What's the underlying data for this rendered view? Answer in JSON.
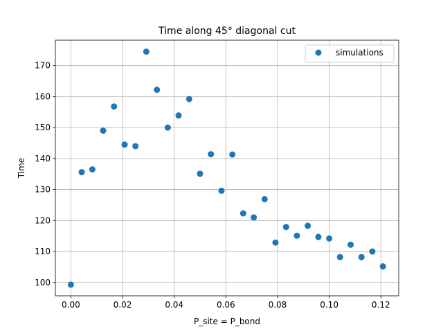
{
  "chart_data": {
    "type": "scatter",
    "title": "Time along 45° diagonal cut",
    "xlabel": "P_site = P_bond",
    "ylabel": "Time",
    "xlim": [
      -0.006,
      0.1269
    ],
    "ylim": [
      95.7,
      178.2
    ],
    "xticks": [
      0.0,
      0.02,
      0.04,
      0.06,
      0.08,
      0.1,
      0.12
    ],
    "xtick_labels": [
      "0.00",
      "0.02",
      "0.04",
      "0.06",
      "0.08",
      "0.10",
      "0.12"
    ],
    "yticks": [
      100,
      110,
      120,
      130,
      140,
      150,
      160,
      170
    ],
    "ytick_labels": [
      "100",
      "110",
      "120",
      "130",
      "140",
      "150",
      "160",
      "170"
    ],
    "grid": true,
    "legend_position": "top-right",
    "series": [
      {
        "name": "simulations",
        "color": "#1f77b4",
        "marker": "circle",
        "points": [
          {
            "x": 0.0,
            "y": 99.3
          },
          {
            "x": 0.0042,
            "y": 135.6
          },
          {
            "x": 0.0083,
            "y": 136.5
          },
          {
            "x": 0.0125,
            "y": 149.0
          },
          {
            "x": 0.0167,
            "y": 156.8
          },
          {
            "x": 0.0208,
            "y": 144.5
          },
          {
            "x": 0.025,
            "y": 144.0
          },
          {
            "x": 0.0292,
            "y": 174.5
          },
          {
            "x": 0.0333,
            "y": 162.2
          },
          {
            "x": 0.0375,
            "y": 150.0
          },
          {
            "x": 0.0417,
            "y": 153.9
          },
          {
            "x": 0.0458,
            "y": 159.2
          },
          {
            "x": 0.05,
            "y": 135.1
          },
          {
            "x": 0.0542,
            "y": 141.4
          },
          {
            "x": 0.0583,
            "y": 129.6
          },
          {
            "x": 0.0625,
            "y": 141.3
          },
          {
            "x": 0.0667,
            "y": 122.3
          },
          {
            "x": 0.0708,
            "y": 121.0
          },
          {
            "x": 0.075,
            "y": 126.9
          },
          {
            "x": 0.0792,
            "y": 112.9
          },
          {
            "x": 0.0833,
            "y": 117.9
          },
          {
            "x": 0.0875,
            "y": 115.1
          },
          {
            "x": 0.0917,
            "y": 118.3
          },
          {
            "x": 0.0958,
            "y": 114.7
          },
          {
            "x": 0.1,
            "y": 114.2
          },
          {
            "x": 0.1042,
            "y": 108.2
          },
          {
            "x": 0.1083,
            "y": 112.2
          },
          {
            "x": 0.1125,
            "y": 108.2
          },
          {
            "x": 0.1167,
            "y": 110.0
          },
          {
            "x": 0.1208,
            "y": 105.2
          }
        ]
      }
    ]
  }
}
